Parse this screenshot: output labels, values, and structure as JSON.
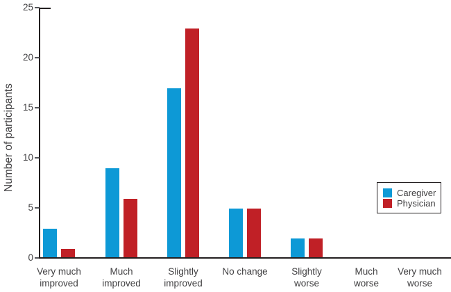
{
  "chart_data": {
    "type": "bar",
    "title": "",
    "xlabel": "",
    "ylabel": "Number of participants",
    "categories": [
      "Very much\nimproved",
      "Much\nimproved",
      "Slightly\nimproved",
      "No change",
      "Slightly\nworse",
      "Much\nworse",
      "Very much\nworse"
    ],
    "series": [
      {
        "name": "Caregiver",
        "color": "#0d99d6",
        "values": [
          3,
          9,
          17,
          5,
          2,
          0,
          0
        ]
      },
      {
        "name": "Physician",
        "color": "#c02026",
        "values": [
          1,
          6,
          23,
          5,
          2,
          0,
          0
        ]
      }
    ],
    "ylim": [
      0,
      25
    ],
    "yticks": [
      0,
      5,
      10,
      15,
      20,
      25
    ],
    "grid": false,
    "legend_position": "right-middle",
    "colors": {
      "axis": "#231f20",
      "text": "#414042",
      "background": "#ffffff"
    }
  }
}
